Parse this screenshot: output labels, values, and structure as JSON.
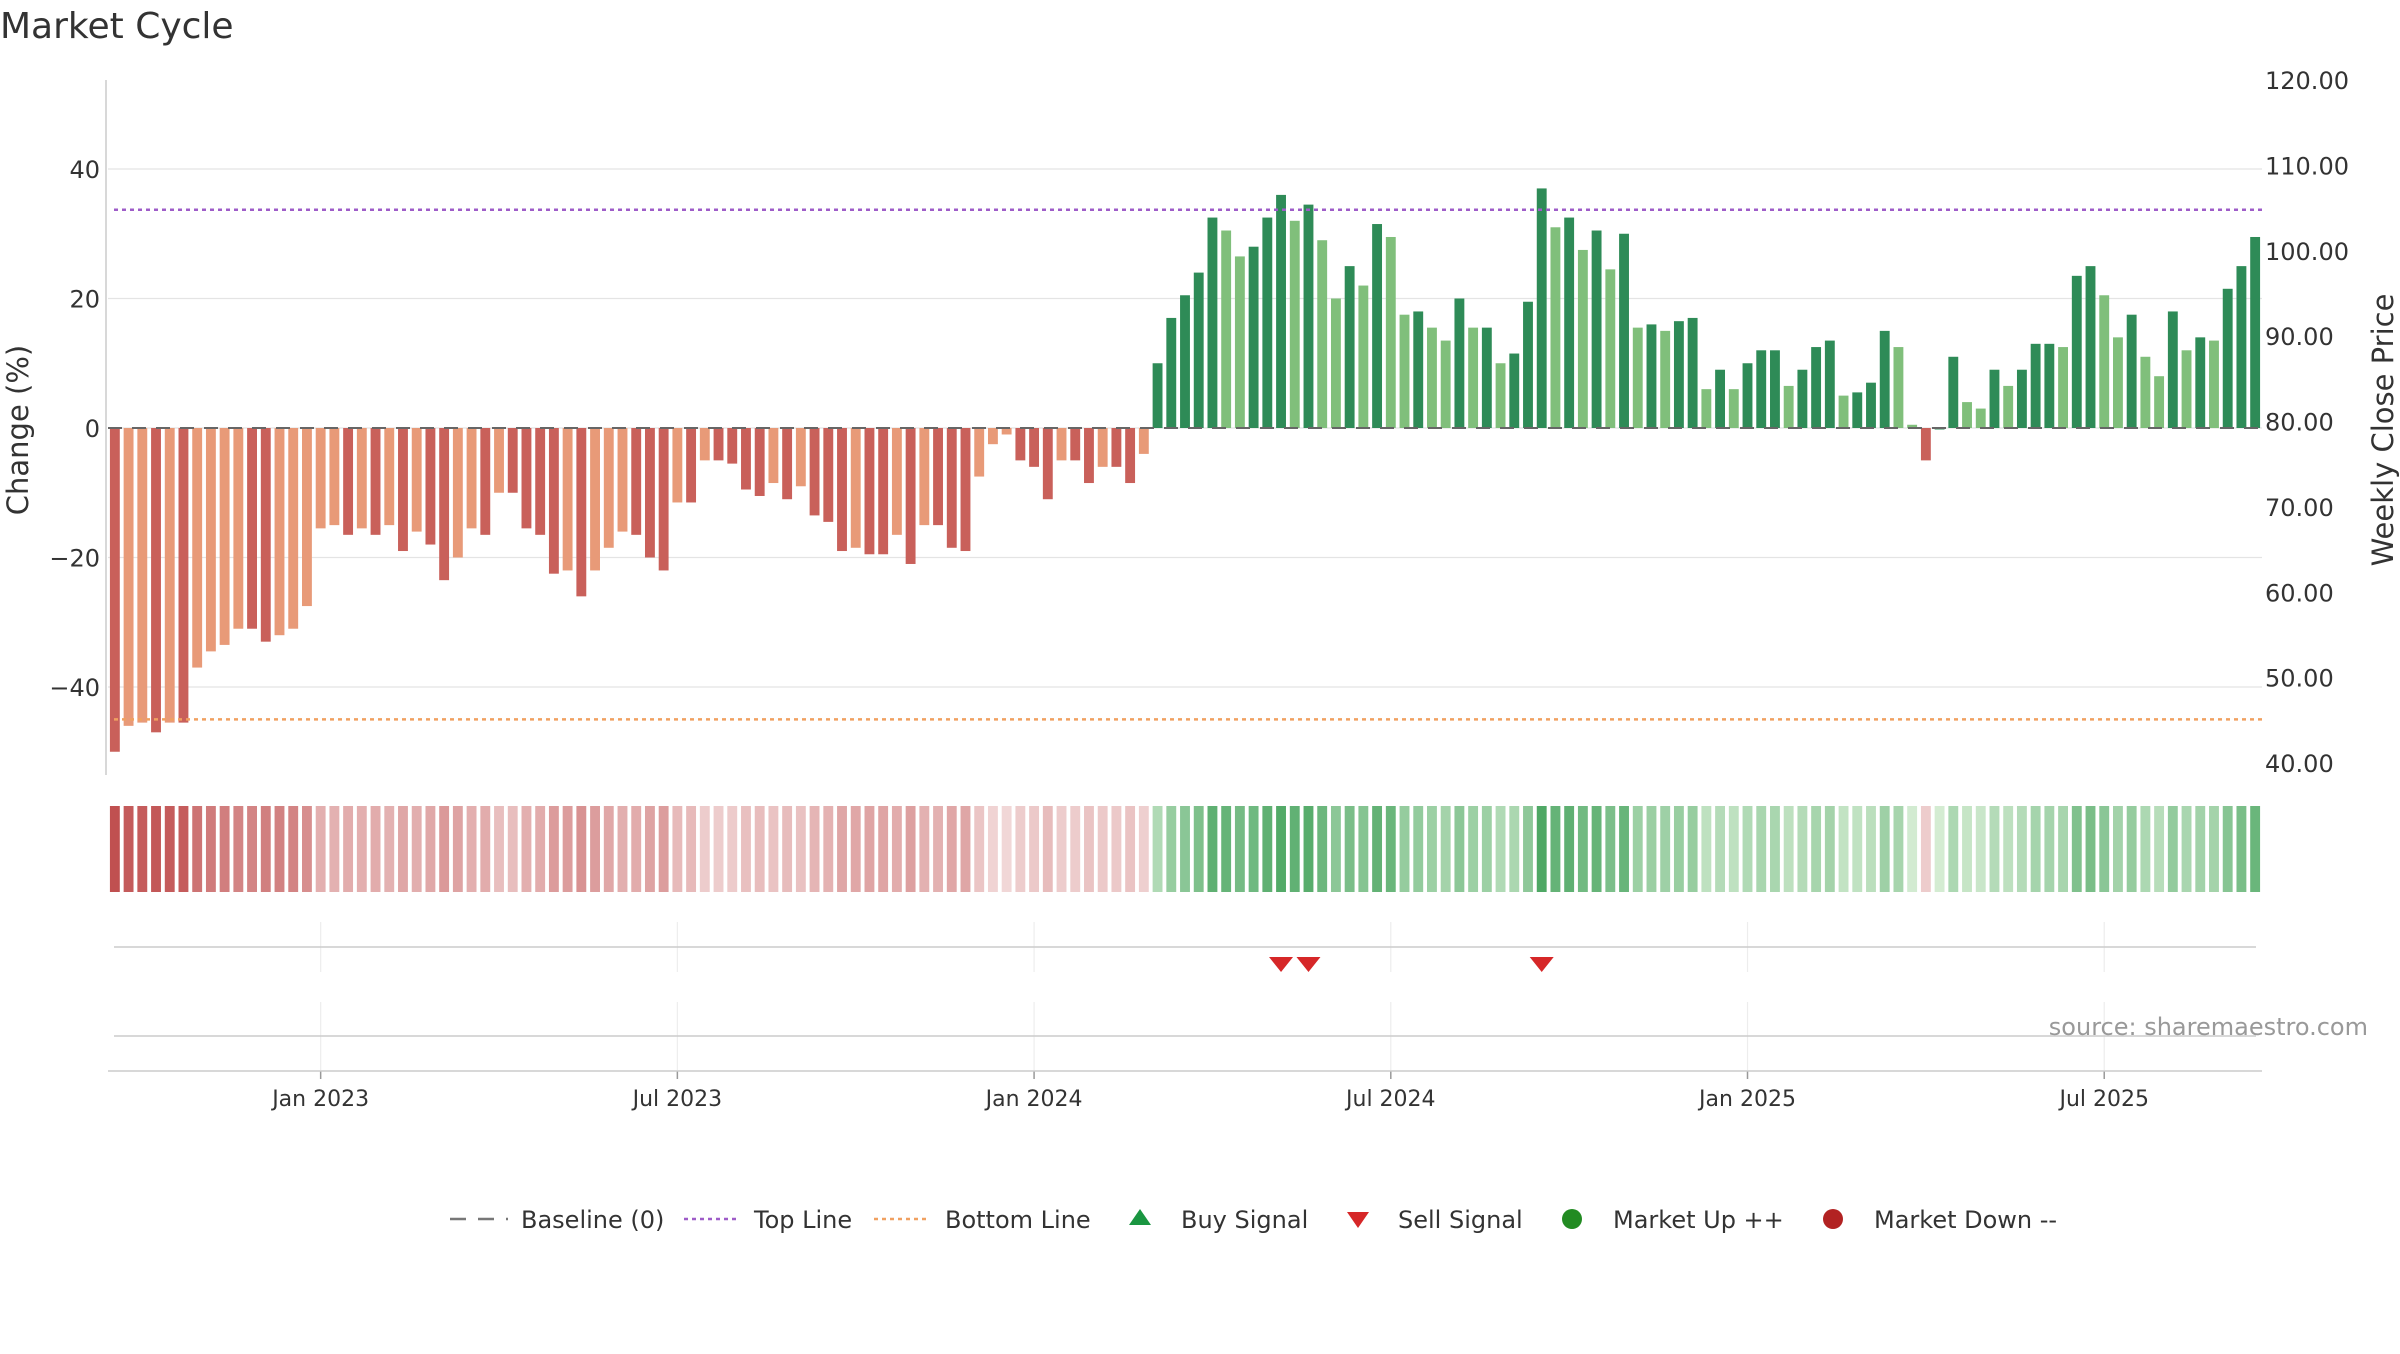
{
  "chart_data": {
    "type": "bar",
    "title": "Market Cycle",
    "ylabel_left": "Change (%)",
    "ylabel_right": "Weekly Close Price",
    "y_left_ticks": [
      "40",
      "20",
      "0",
      "−20",
      "−40"
    ],
    "y_left_tick_values": [
      40,
      20,
      0,
      -20,
      -40
    ],
    "y_left_range": [
      -54,
      54
    ],
    "y_right_ticks": [
      "120.00",
      "110.00",
      "100.00",
      "90.00",
      "80.00",
      "70.00",
      "60.00",
      "50.00",
      "40.00"
    ],
    "y_right_tick_values": [
      120,
      110,
      100,
      90,
      80,
      70,
      60,
      50,
      40
    ],
    "x_tick_labels": [
      "Jan 2023",
      "Jul 2023",
      "Jan 2024",
      "Jul 2024",
      "Jan 2025",
      "Jul 2025"
    ],
    "x_tick_bar_index": [
      15,
      41,
      67,
      93,
      119,
      145
    ],
    "top_line": 33.7,
    "bottom_line": -45,
    "values": [
      -50,
      -46,
      -45.5,
      -47,
      -45.5,
      -45.5,
      -37,
      -34.5,
      -33.5,
      -31,
      -31,
      -33,
      -32,
      -31,
      -27.5,
      -15.5,
      -15,
      -16.5,
      -15.5,
      -16.5,
      -15,
      -19,
      -16,
      -18,
      -23.5,
      -20,
      -15.5,
      -16.5,
      -10,
      -10,
      -15.5,
      -16.5,
      -22.5,
      -22,
      -26,
      -22,
      -18.5,
      -16,
      -16.5,
      -20,
      -22,
      -11.5,
      -11.5,
      -5,
      -5,
      -5.5,
      -9.5,
      -10.5,
      -8.5,
      -11,
      -9,
      -13.5,
      -14.5,
      -19,
      -18.5,
      -19.5,
      -19.5,
      -16.5,
      -21,
      -15,
      -15,
      -18.5,
      -19,
      -7.5,
      -2.5,
      -1,
      -5,
      -6,
      -11,
      -5,
      -5,
      -8.5,
      -6,
      -6,
      -8.5,
      -4,
      10,
      17,
      20.5,
      24,
      32.5,
      30.5,
      26.5,
      28,
      32.5,
      36,
      32,
      34.5,
      29,
      20,
      25,
      22,
      31.5,
      29.5,
      17.5,
      18,
      15.5,
      13.5,
      20,
      15.5,
      15.5,
      10,
      11.5,
      19.5,
      37,
      31,
      32.5,
      27.5,
      30.5,
      24.5,
      30,
      15.5,
      16,
      15,
      16.5,
      17,
      6,
      9,
      6,
      10,
      12,
      12,
      6.5,
      9,
      12.5,
      13.5,
      5,
      5.5,
      7,
      15,
      12.5,
      0.5,
      -5,
      0,
      11,
      4,
      3,
      9,
      6.5,
      9,
      13,
      13,
      12.5,
      23.5,
      25,
      20.5,
      14,
      17.5,
      11,
      8,
      18,
      12,
      14,
      13.5,
      21.5,
      25,
      29.5
    ],
    "sell_signal_bar_index": [
      85,
      87,
      104
    ],
    "buy_signal_bar_index": [],
    "colors": {
      "down_dark": "#c9605a",
      "down_light": "#e89a78",
      "up_dark": "#2e8b57",
      "up_light": "#80bf7b",
      "top_line": "#9e5cc8",
      "bottom_line": "#f0a060",
      "baseline": "#666666",
      "sell": "#d62728",
      "buy": "#2ca02c",
      "market_up": "#228b22",
      "market_down": "#b22222"
    },
    "legend": [
      {
        "label": "Baseline (0)",
        "marker": "dash",
        "color": "#777777"
      },
      {
        "label": "Top Line",
        "marker": "dot-line",
        "color": "#9e5cc8"
      },
      {
        "label": "Bottom Line",
        "marker": "dot-line",
        "color": "#f0a060"
      },
      {
        "label": "Buy Signal",
        "marker": "triangle-up",
        "color": "#1a9641"
      },
      {
        "label": "Sell Signal",
        "marker": "triangle-down",
        "color": "#d62728"
      },
      {
        "label": "Market Up ++",
        "marker": "circle",
        "color": "#228b22"
      },
      {
        "label": "Market Down --",
        "marker": "circle",
        "color": "#b22222"
      }
    ],
    "legend_position": "bottom",
    "grid": true,
    "source": "source: sharemaestro.com"
  }
}
